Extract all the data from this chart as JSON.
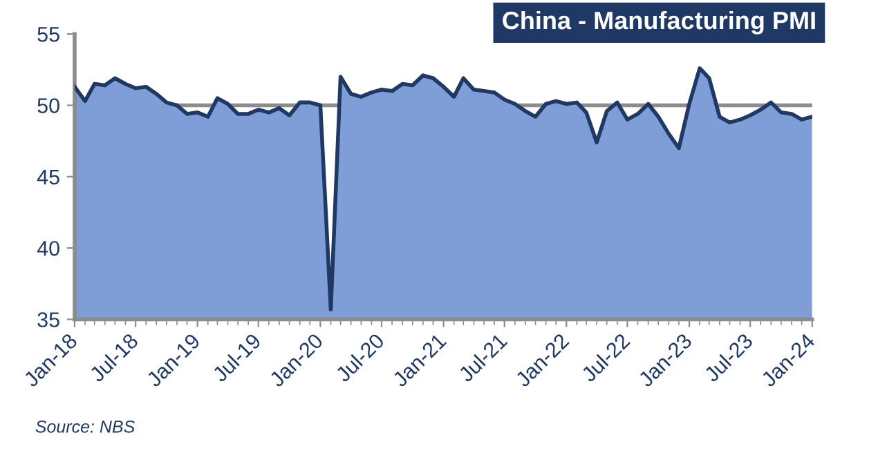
{
  "chart_data": {
    "type": "area",
    "title": "China - Manufacturing PMI",
    "x": [
      "2018-01",
      "2018-02",
      "2018-03",
      "2018-04",
      "2018-05",
      "2018-06",
      "2018-07",
      "2018-08",
      "2018-09",
      "2018-10",
      "2018-11",
      "2018-12",
      "2019-01",
      "2019-02",
      "2019-03",
      "2019-04",
      "2019-05",
      "2019-06",
      "2019-07",
      "2019-08",
      "2019-09",
      "2019-10",
      "2019-11",
      "2019-12",
      "2020-01",
      "2020-02",
      "2020-03",
      "2020-04",
      "2020-05",
      "2020-06",
      "2020-07",
      "2020-08",
      "2020-09",
      "2020-10",
      "2020-11",
      "2020-12",
      "2021-01",
      "2021-02",
      "2021-03",
      "2021-04",
      "2021-05",
      "2021-06",
      "2021-07",
      "2021-08",
      "2021-09",
      "2021-10",
      "2021-11",
      "2021-12",
      "2022-01",
      "2022-02",
      "2022-03",
      "2022-04",
      "2022-05",
      "2022-06",
      "2022-07",
      "2022-08",
      "2022-09",
      "2022-10",
      "2022-11",
      "2022-12",
      "2023-01",
      "2023-02",
      "2023-03",
      "2023-04",
      "2023-05",
      "2023-06",
      "2023-07",
      "2023-08",
      "2023-09",
      "2023-10",
      "2023-11",
      "2023-12",
      "2024-01"
    ],
    "series": [
      {
        "color": "#7f9ed8",
        "values": [
          51.3,
          50.3,
          51.5,
          51.4,
          51.9,
          51.5,
          51.2,
          51.3,
          50.8,
          50.2,
          50.0,
          49.4,
          49.5,
          49.2,
          50.5,
          50.1,
          49.4,
          49.4,
          49.7,
          49.5,
          49.8,
          49.3,
          50.2,
          50.2,
          50.0,
          35.7,
          52.0,
          50.8,
          50.6,
          50.9,
          51.1,
          51.0,
          51.5,
          51.4,
          52.1,
          51.9,
          51.3,
          50.6,
          51.9,
          51.1,
          51.0,
          50.9,
          50.4,
          50.1,
          49.6,
          49.2,
          50.1,
          50.3,
          50.1,
          50.2,
          49.5,
          47.4,
          49.6,
          50.2,
          49.0,
          49.4,
          50.1,
          49.2,
          48.0,
          47.0,
          50.1,
          52.6,
          51.9,
          49.2,
          48.8,
          49.0,
          49.3,
          49.7,
          50.2,
          49.5,
          49.4,
          49.0,
          49.2
        ]
      }
    ],
    "xlim": [
      "2018-01",
      "2024-01"
    ],
    "xticks": [
      {
        "value": "2018-01",
        "label": "Jan-18"
      },
      {
        "value": "2018-07",
        "label": "Jul-18"
      },
      {
        "value": "2019-01",
        "label": "Jan-19"
      },
      {
        "value": "2019-07",
        "label": "Jul-19"
      },
      {
        "value": "2020-01",
        "label": "Jan-20"
      },
      {
        "value": "2020-07",
        "label": "Jul-20"
      },
      {
        "value": "2021-01",
        "label": "Jan-21"
      },
      {
        "value": "2021-07",
        "label": "Jul-21"
      },
      {
        "value": "2022-01",
        "label": "Jan-22"
      },
      {
        "value": "2022-07",
        "label": "Jul-22"
      },
      {
        "value": "2023-01",
        "label": "Jan-23"
      },
      {
        "value": "2023-07",
        "label": "Jul-23"
      },
      {
        "value": "2024-01",
        "label": "Jan-24"
      }
    ],
    "ylim": [
      35,
      55
    ],
    "yticks": [
      35,
      40,
      45,
      50,
      55
    ],
    "ref_lines": [
      {
        "axis": "y",
        "value": 50,
        "color": "#8c8c8c"
      }
    ],
    "grid": false,
    "annotations": [
      "Source: NBS"
    ]
  }
}
